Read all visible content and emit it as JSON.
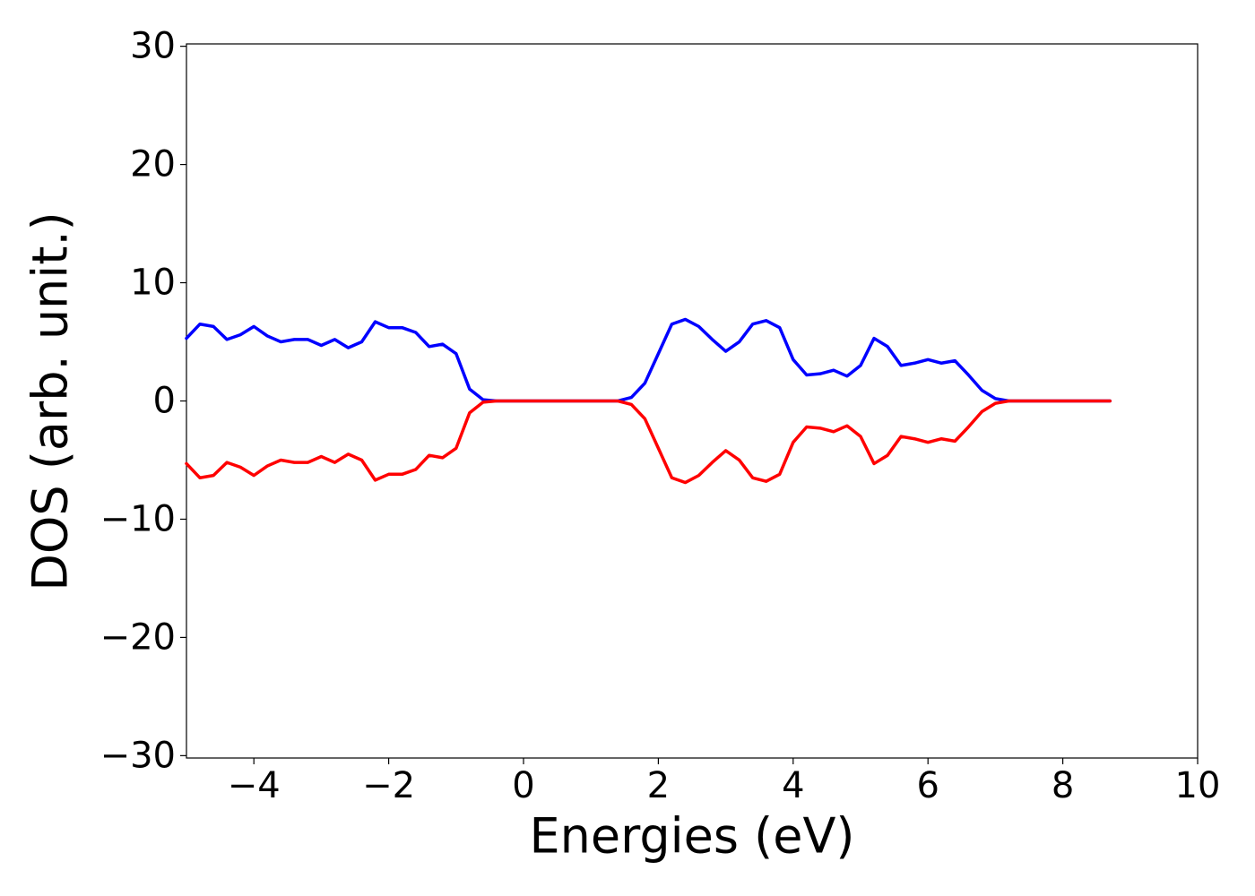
{
  "chart_data": {
    "type": "line",
    "xlabel": "Energies (eV)",
    "ylabel": "DOS (arb. unit.)",
    "x": [
      -5,
      -4.8,
      -4.6,
      -4.4,
      -4.2,
      -4,
      -3.8,
      -3.6,
      -3.4,
      -3.2,
      -3,
      -2.8,
      -2.6,
      -2.4,
      -2.2,
      -2,
      -1.8,
      -1.6,
      -1.4,
      -1.2,
      -1,
      -0.8,
      -0.6,
      -0.4,
      -0.2,
      0,
      0.2,
      0.4,
      0.6,
      0.8,
      1,
      1.2,
      1.4,
      1.6,
      1.8,
      2,
      2.2,
      2.4,
      2.6,
      2.8,
      3,
      3.2,
      3.4,
      3.6,
      3.8,
      4,
      4.2,
      4.4,
      4.6,
      4.8,
      5,
      5.2,
      5.4,
      5.6,
      5.8,
      6,
      6.2,
      6.4,
      6.6,
      6.8,
      7,
      7.2,
      7.4,
      7.6,
      7.8,
      8,
      8.2,
      8.4,
      8.6,
      8.7
    ],
    "series": [
      {
        "color": "#0000ff",
        "values": [
          5.3,
          6.5,
          6.3,
          5.2,
          5.6,
          6.3,
          5.5,
          5.0,
          5.2,
          5.2,
          4.7,
          5.2,
          4.5,
          5.0,
          6.7,
          6.2,
          6.2,
          5.8,
          4.6,
          4.8,
          4.0,
          1.0,
          0.1,
          0,
          0,
          0,
          0,
          0,
          0,
          0,
          0,
          0,
          0,
          0.3,
          1.5,
          4.0,
          6.5,
          6.9,
          6.3,
          5.2,
          4.2,
          5.0,
          6.5,
          6.8,
          6.2,
          3.5,
          2.2,
          2.3,
          2.6,
          2.1,
          3.0,
          5.3,
          4.6,
          3.0,
          3.2,
          3.5,
          3.2,
          3.4,
          2.2,
          0.9,
          0.2,
          0,
          0,
          0,
          0,
          0,
          0,
          0,
          0,
          0
        ]
      },
      {
        "color": "#ff0000",
        "values": [
          -5.3,
          -6.5,
          -6.3,
          -5.2,
          -5.6,
          -6.3,
          -5.5,
          -5.0,
          -5.2,
          -5.2,
          -4.7,
          -5.2,
          -4.5,
          -5.0,
          -6.7,
          -6.2,
          -6.2,
          -5.8,
          -4.6,
          -4.8,
          -4.0,
          -1.0,
          -0.1,
          0,
          0,
          0,
          0,
          0,
          0,
          0,
          0,
          0,
          0,
          -0.3,
          -1.5,
          -4.0,
          -6.5,
          -6.9,
          -6.3,
          -5.2,
          -4.2,
          -5.0,
          -6.5,
          -6.8,
          -6.2,
          -3.5,
          -2.2,
          -2.3,
          -2.6,
          -2.1,
          -3.0,
          -5.3,
          -4.6,
          -3.0,
          -3.2,
          -3.5,
          -3.2,
          -3.4,
          -2.2,
          -0.9,
          -0.2,
          0,
          0,
          0,
          0,
          0,
          0,
          0,
          0,
          0
        ]
      }
    ],
    "xlim": [
      -5,
      10
    ],
    "xticks": [
      {
        "value": -4,
        "label": "−4"
      },
      {
        "value": -2,
        "label": "−2"
      },
      0,
      2,
      4,
      6,
      8,
      10
    ],
    "ylim": [
      -30.2,
      30.2
    ],
    "yticks": [
      {
        "value": -30,
        "label": "−30"
      },
      {
        "value": -20,
        "label": "−20"
      },
      {
        "value": -10,
        "label": "−10"
      },
      0,
      10,
      20,
      30
    ],
    "grid": false
  }
}
